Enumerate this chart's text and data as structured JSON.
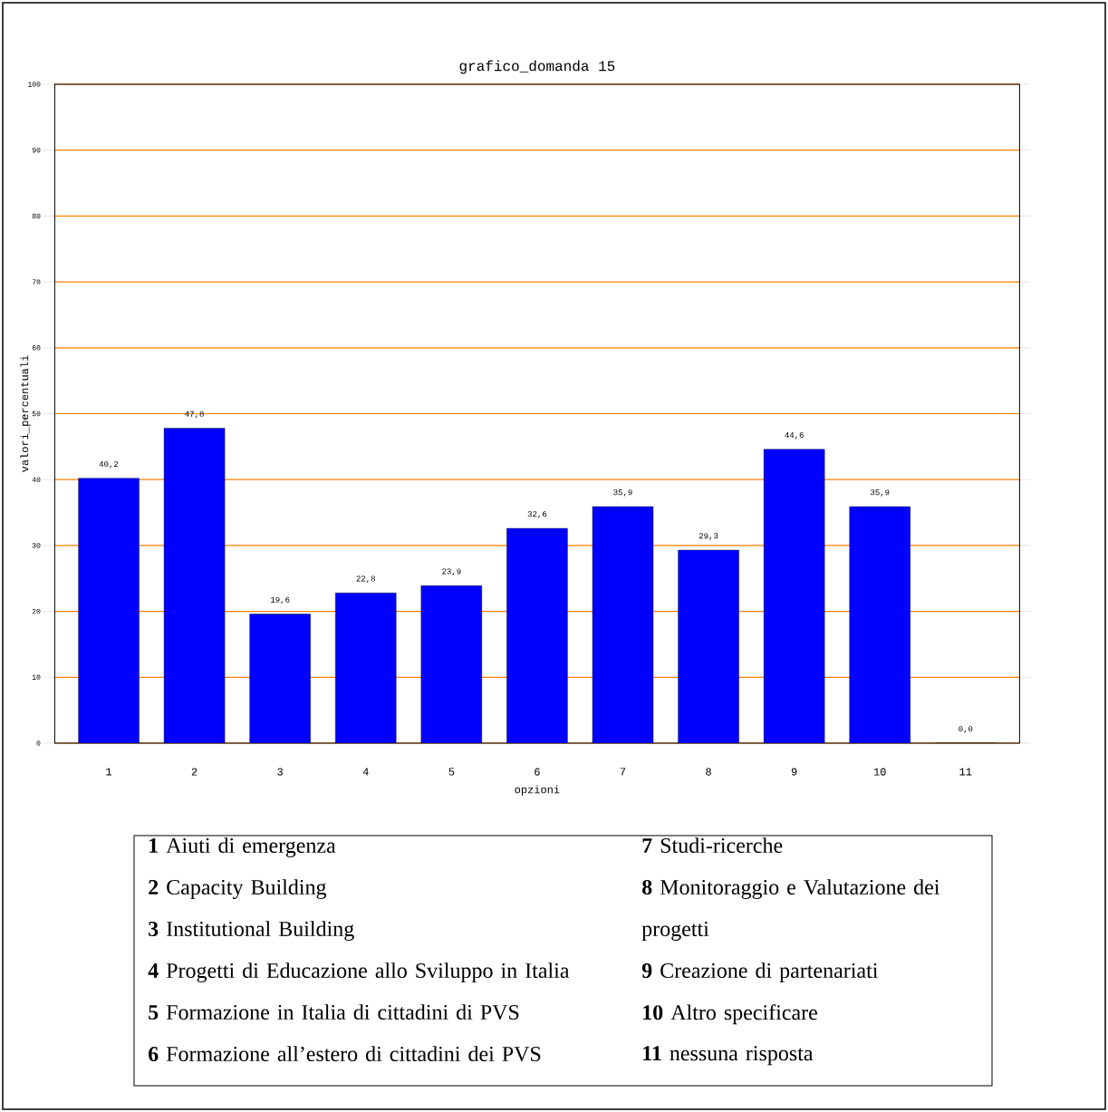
{
  "chart_data": {
    "type": "bar",
    "title": "grafico_domanda 15",
    "xlabel": "opzioni",
    "ylabel": "valori_percentuali",
    "categories": [
      "1",
      "2",
      "3",
      "4",
      "5",
      "6",
      "7",
      "8",
      "9",
      "10",
      "11"
    ],
    "values": [
      40.2,
      47.8,
      19.6,
      22.8,
      23.9,
      32.6,
      35.9,
      29.3,
      44.6,
      35.9,
      0.0
    ],
    "value_labels": [
      "40,2",
      "47,8",
      "19,6",
      "22,8",
      "23,9",
      "32,6",
      "35,9",
      "29,3",
      "44,6",
      "35,9",
      "0,0"
    ],
    "color": "#0000ff",
    "ylim": [
      0,
      100
    ],
    "yticks": [
      0,
      10,
      20,
      30,
      40,
      50,
      60,
      70,
      80,
      90,
      100
    ],
    "grid": "y",
    "annotations": [
      "**1**  Aiuti di emergenza",
      "**2**  Capacity Building",
      "**3**  Institutional Building",
      "**4**  Progetti di Educazione allo  Sviluppo in Italia",
      "**5**  Formazione in Italia di cittadini di  PVS",
      "**6**  Formazione all’estero di cittadini dei PVS",
      "**7**  Studi-ricerche",
      "**8**  Monitoraggio e Valutazione dei progetti",
      "**9**  Creazione di  partenariati",
      "**10** Altro specificare",
      "**11**  nessuna  risposta"
    ]
  }
}
